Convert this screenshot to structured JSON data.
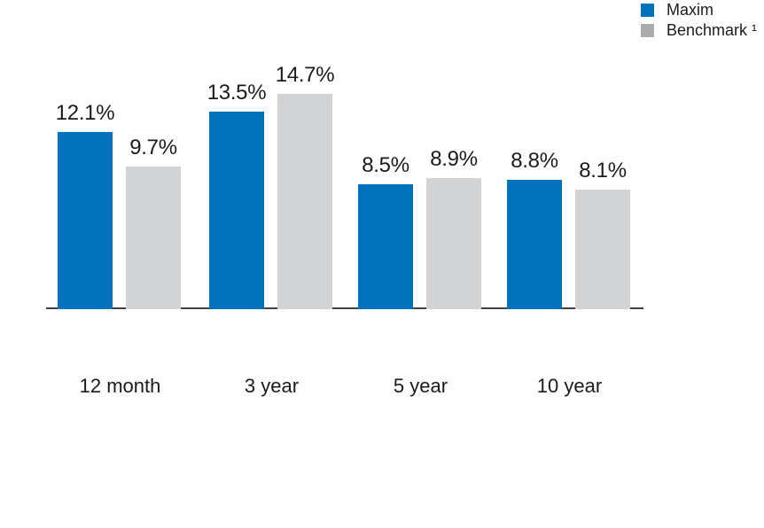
{
  "legend": {
    "items": [
      {
        "key": "maxim",
        "label": "Maxim",
        "color": "#0072bc"
      },
      {
        "key": "benchmark",
        "label": "Benchmark ¹",
        "color": "#aaacae"
      }
    ]
  },
  "chart_data": {
    "type": "bar",
    "title": "",
    "xlabel": "",
    "ylabel": "",
    "unit": "%",
    "categories": [
      "12 month",
      "3 year",
      "5 year",
      "10 year"
    ],
    "series": [
      {
        "key": "maxim",
        "name": "Maxim",
        "color": "#0072bc",
        "values": [
          12.1,
          13.5,
          8.5,
          8.8
        ],
        "labels": [
          "12.1%",
          "13.5%",
          "8.5%",
          "8.8%"
        ]
      },
      {
        "key": "benchmark",
        "name": "Benchmark ¹",
        "color": "#d2d3d5",
        "values": [
          9.7,
          14.7,
          8.9,
          8.1
        ],
        "labels": [
          "9.7%",
          "14.7%",
          "8.9%",
          "8.1%"
        ]
      }
    ],
    "ylim": [
      0,
      15
    ],
    "grid": false,
    "y_axis_visible": false,
    "x_axis_visible": true,
    "legend_position": "top-right"
  }
}
